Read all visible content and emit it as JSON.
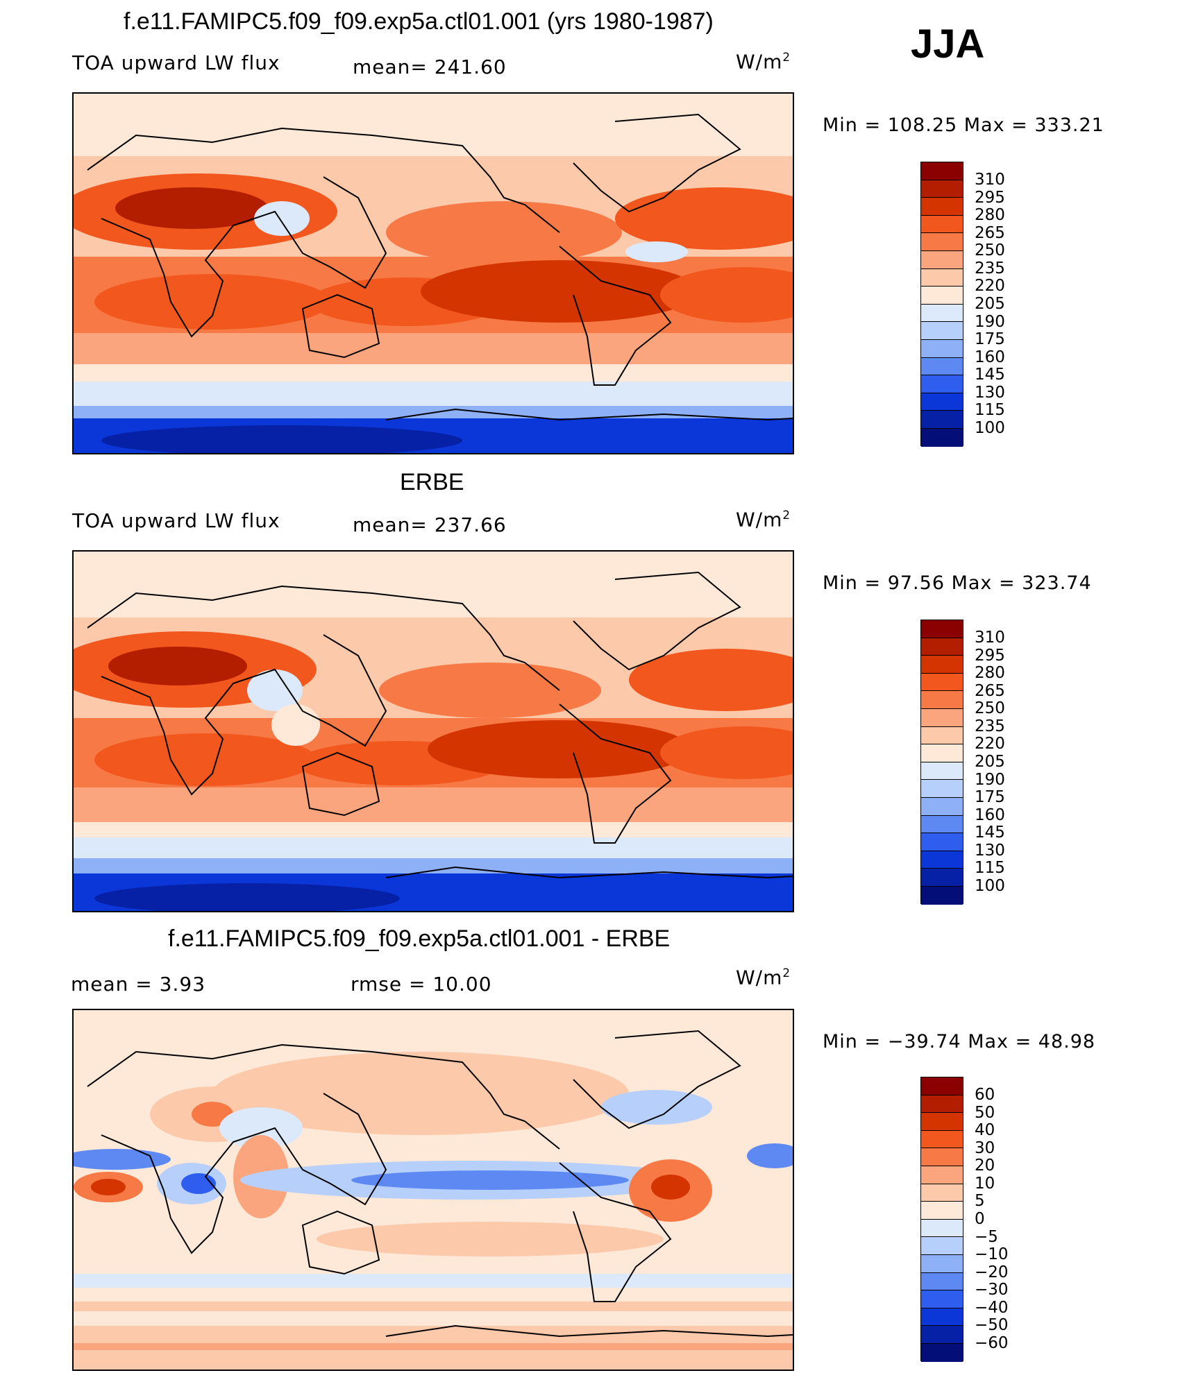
{
  "season": "JJA",
  "units_base": "W/m",
  "units_exp": "2",
  "panels": [
    {
      "title": "f.e11.FAMIPC5.f09_f09.exp5a.ctl01.001 (yrs 1980-1987)",
      "left_label": "TOA upward LW flux",
      "mid_label": "mean=  241.60",
      "minmax": "Min  =  108.25  Max  =  333.21"
    },
    {
      "title": "ERBE",
      "left_label": "TOA upward LW flux",
      "mid_label": "mean=  237.66",
      "minmax": "Min  =    97.56  Max  =  323.74"
    },
    {
      "title": "f.e11.FAMIPC5.f09_f09.exp5a.ctl01.001 - ERBE",
      "left_label": "mean  =      3.93",
      "mid_label": "rmse  =    10.00",
      "minmax": "Min  =  −39.74  Max  =    48.98"
    }
  ],
  "chart_data": [
    {
      "type": "heatmap",
      "title": "f.e11.FAMIPC5.f09_f09.exp5a.ctl01.001 (yrs 1980-1987)",
      "variable": "TOA upward LW flux",
      "units": "W/m2",
      "mean": 241.6,
      "min": 108.25,
      "max": 333.21,
      "levels": [
        "310",
        "295",
        "280",
        "265",
        "250",
        "235",
        "220",
        "205",
        "190",
        "175",
        "160",
        "145",
        "130",
        "115",
        "100"
      ]
    },
    {
      "type": "heatmap",
      "title": "ERBE",
      "variable": "TOA upward LW flux",
      "units": "W/m2",
      "mean": 237.66,
      "min": 97.56,
      "max": 323.74,
      "levels": [
        "310",
        "295",
        "280",
        "265",
        "250",
        "235",
        "220",
        "205",
        "190",
        "175",
        "160",
        "145",
        "130",
        "115",
        "100"
      ]
    },
    {
      "type": "heatmap",
      "title": "f.e11.FAMIPC5.f09_f09.exp5a.ctl01.001 - ERBE",
      "units": "W/m2",
      "mean": 3.93,
      "rmse": 10.0,
      "min": -39.74,
      "max": 48.98,
      "levels": [
        "60",
        "50",
        "40",
        "30",
        "20",
        "10",
        "5",
        "0",
        "−5",
        "−10",
        "−20",
        "−30",
        "−40",
        "−50",
        "−60"
      ]
    }
  ],
  "colors": {
    "abs_scale": [
      "#8b0000",
      "#b41e00",
      "#d43500",
      "#f2571d",
      "#f77a46",
      "#fba57e",
      "#fdc9ab",
      "#fee8d8",
      "#dbe9fb",
      "#b7d0fb",
      "#8db0f7",
      "#5e89f3",
      "#2f5eef",
      "#0b37d9",
      "#0721a6",
      "#040e78"
    ],
    "diff_scale": [
      "#8b0000",
      "#b41e00",
      "#d43500",
      "#f2571d",
      "#f77a46",
      "#fba57e",
      "#fdc9ab",
      "#fee8d8",
      "#dbe9fb",
      "#b7d0fb",
      "#8db0f7",
      "#5e89f3",
      "#2f5eef",
      "#0b37d9",
      "#0721a6",
      "#040e78"
    ]
  }
}
